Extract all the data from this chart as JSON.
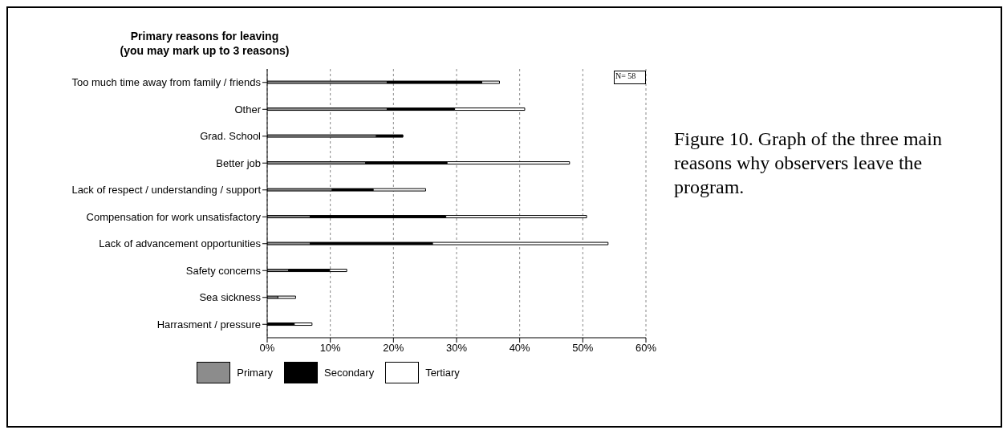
{
  "chart_data": {
    "type": "bar",
    "orientation": "horizontal",
    "stacked": true,
    "title": "Primary reasons for leaving",
    "subtitle": "(you may mark up to 3 reasons)",
    "categories": [
      "Too much time away from family / friends",
      "Other",
      "Grad. School",
      "Better job",
      "Lack of respect / understanding / support",
      "Compensation for work unsatisfactory",
      "Lack of advancement opportunities",
      "Safety concerns",
      "Sea sickness",
      "Harrasment / pressure"
    ],
    "series": [
      {
        "name": "Primary",
        "color": "#8c8c8c",
        "values": [
          19,
          19,
          17.3,
          15.6,
          10.3,
          6.8,
          6.8,
          3.4,
          1.7,
          0
        ]
      },
      {
        "name": "Secondary",
        "color": "#000000",
        "values": [
          15,
          10.7,
          4.2,
          12.9,
          6.5,
          21.5,
          19.4,
          6.5,
          0,
          4.3
        ]
      },
      {
        "name": "Tertiary",
        "color": "#ffffff",
        "values": [
          2.8,
          11.1,
          0,
          19.4,
          8.3,
          22.3,
          27.8,
          2.7,
          2.8,
          2.8
        ]
      }
    ],
    "xlim": [
      0,
      60
    ],
    "xticks": [
      {
        "value": 0,
        "label": "0%"
      },
      {
        "value": 10,
        "label": "10%"
      },
      {
        "value": 20,
        "label": "20%"
      },
      {
        "value": 30,
        "label": "30%"
      },
      {
        "value": 40,
        "label": "40%"
      },
      {
        "value": 50,
        "label": "50%"
      },
      {
        "value": 60,
        "label": "60%"
      }
    ],
    "grid": "x",
    "legend": "bottom",
    "annotations": [
      "N= 58",
      "Figure 10.  Graph of the three main reasons why observers leave the program."
    ]
  }
}
